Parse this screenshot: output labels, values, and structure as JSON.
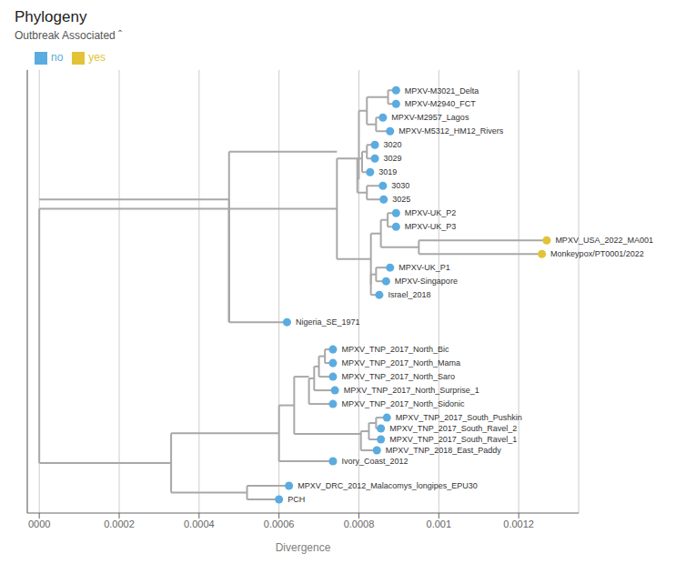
{
  "chart_data": {
    "type": "scatter",
    "title": "Phylogeny",
    "subtitle": "Outbreak Associated ˆ",
    "xlabel": "Divergence",
    "xlim": [
      -3e-05,
      0.00135
    ],
    "xticks": [
      {
        "value": 0,
        "label": "0000"
      },
      0.0002,
      0.0004,
      0.0006,
      0.0008,
      0.001,
      0.0012
    ],
    "ylim": [
      -3.0,
      29.5
    ],
    "tick_labels": "x",
    "grid": true,
    "legend": "upper left",
    "series": [
      {
        "name": "no",
        "color": "#5aace0"
      },
      {
        "name": "yes",
        "color": "#e2c337"
      }
    ],
    "points": [
      {
        "name": "MPXV-M3021_Delta",
        "x": 0.000893,
        "y": 28,
        "group": "no"
      },
      {
        "name": "MPXV-M2940_FCT",
        "x": 0.000893,
        "y": 27,
        "group": "no"
      },
      {
        "name": "MPXV-M2957_Lagos",
        "x": 0.00086,
        "y": 26,
        "group": "no"
      },
      {
        "name": "MPXV-M5312_HM12_Rivers",
        "x": 0.000878,
        "y": 25,
        "group": "no"
      },
      {
        "name": "3020",
        "x": 0.00084,
        "y": 24,
        "group": "no"
      },
      {
        "name": "3029",
        "x": 0.00084,
        "y": 23,
        "group": "no"
      },
      {
        "name": "3019",
        "x": 0.000828,
        "y": 22,
        "group": "no"
      },
      {
        "name": "3030",
        "x": 0.00086,
        "y": 21,
        "group": "no"
      },
      {
        "name": "3025",
        "x": 0.000862,
        "y": 20,
        "group": "no"
      },
      {
        "name": "MPXV-UK_P2",
        "x": 0.000893,
        "y": 19,
        "group": "no"
      },
      {
        "name": "MPXV-UK_P3",
        "x": 0.000893,
        "y": 18,
        "group": "no"
      },
      {
        "name": "MPXV_USA_2022_MA001",
        "x": 0.00127,
        "y": 17,
        "group": "yes"
      },
      {
        "name": "Monkeypox/PT0001/2022",
        "x": 0.001258,
        "y": 16,
        "group": "yes"
      },
      {
        "name": "MPXV-UK_P1",
        "x": 0.000878,
        "y": 15,
        "group": "no"
      },
      {
        "name": "MPXV-Singapore",
        "x": 0.000868,
        "y": 14,
        "group": "no"
      },
      {
        "name": "Israel_2018",
        "x": 0.000851,
        "y": 13,
        "group": "no"
      },
      {
        "name": "Nigeria_SE_1971",
        "x": 0.00062,
        "y": 11,
        "group": "no"
      },
      {
        "name": "MPXV_TNP_2017_North_Bic",
        "x": 0.000735,
        "y": 9,
        "group": "no"
      },
      {
        "name": "MPXV_TNP_2017_North_Mama",
        "x": 0.000735,
        "y": 8,
        "group": "no"
      },
      {
        "name": "MPXV_TNP_2017_North_Saro",
        "x": 0.000735,
        "y": 7,
        "group": "no"
      },
      {
        "name": "MPXV_TNP_2017_North_Surprise_1",
        "x": 0.00074,
        "y": 6,
        "group": "no"
      },
      {
        "name": "MPXV_TNP_2017_North_Sidonic",
        "x": 0.000735,
        "y": 5,
        "group": "no"
      },
      {
        "name": "MPXV_TNP_2017_South_Pushkin",
        "x": 0.00087,
        "y": 4,
        "group": "no"
      },
      {
        "name": "MPXV_TNP_2017_South_Ravel_2",
        "x": 0.000855,
        "y": 3.2,
        "group": "no"
      },
      {
        "name": "MPXV_TNP_2017_South_Ravel_1",
        "x": 0.000855,
        "y": 2.4,
        "group": "no"
      },
      {
        "name": "MPXV_TNP_2018_East_Paddy",
        "x": 0.000845,
        "y": 1.6,
        "group": "no"
      },
      {
        "name": "Ivory_Coast_2012",
        "x": 0.000735,
        "y": 0.8,
        "group": "no"
      },
      {
        "name": "MPXV_DRC_2012_Malacomys_longipes_EPU30",
        "x": 0.000625,
        "y": -1,
        "group": "no"
      },
      {
        "name": "PCH",
        "x": 0.0006,
        "y": -2,
        "group": "no"
      }
    ],
    "branches": {
      "color": "#a8a8a8",
      "segments": [
        [
          0,
          20,
          0.000475,
          20
        ],
        [
          0.000475,
          11,
          0.000475,
          20
        ],
        [
          0.000475,
          11,
          0.00062,
          11
        ],
        [
          0.000475,
          23.5,
          0.000745,
          23.5
        ],
        [
          0.000475,
          11,
          0.000475,
          23.5
        ],
        [
          0.000873,
          28,
          0.000893,
          28
        ],
        [
          0.000873,
          27,
          0.000893,
          27
        ],
        [
          0.000873,
          27,
          0.000873,
          28
        ],
        [
          0.000843,
          26,
          0.00086,
          26
        ],
        [
          0.000843,
          25,
          0.000878,
          25
        ],
        [
          0.000843,
          25,
          0.000843,
          26
        ],
        [
          0.00082,
          27.5,
          0.000873,
          27.5
        ],
        [
          0.00082,
          25.5,
          0.000843,
          25.5
        ],
        [
          0.00082,
          25.5,
          0.00082,
          27.5
        ],
        [
          0.00082,
          24,
          0.00084,
          24
        ],
        [
          0.00082,
          23,
          0.00084,
          23
        ],
        [
          0.00082,
          23,
          0.00082,
          24
        ],
        [
          0.000808,
          23.5,
          0.00082,
          23.5
        ],
        [
          0.000808,
          22,
          0.000828,
          22
        ],
        [
          0.000808,
          22,
          0.000808,
          23.5
        ],
        [
          0.00082,
          21,
          0.00086,
          21
        ],
        [
          0.00082,
          20,
          0.000862,
          20
        ],
        [
          0.00082,
          20,
          0.00082,
          21
        ],
        [
          0.000796,
          23,
          0.000808,
          23
        ],
        [
          0.000796,
          20.5,
          0.00082,
          20.5
        ],
        [
          0.000796,
          20.5,
          0.000796,
          23
        ],
        [
          0.0008,
          26.5,
          0.00082,
          26.5
        ],
        [
          0.0008,
          21.5,
          0.000796,
          21.5
        ],
        [
          0.0008,
          21.5,
          0.0008,
          26.5
        ],
        [
          0.000872,
          19,
          0.000893,
          19
        ],
        [
          0.000872,
          18,
          0.000893,
          18
        ],
        [
          0.000872,
          18,
          0.000872,
          19
        ],
        [
          0.00095,
          17,
          0.00127,
          17
        ],
        [
          0.00095,
          16,
          0.001258,
          16
        ],
        [
          0.00095,
          16,
          0.00095,
          17
        ],
        [
          0.000855,
          18.5,
          0.000872,
          18.5
        ],
        [
          0.000855,
          16.5,
          0.00095,
          16.5
        ],
        [
          0.000855,
          16.5,
          0.000855,
          18.5
        ],
        [
          0.000843,
          15,
          0.000878,
          15
        ],
        [
          0.000843,
          14,
          0.000868,
          14
        ],
        [
          0.000843,
          14,
          0.000843,
          15
        ],
        [
          0.00083,
          14.5,
          0.000843,
          14.5
        ],
        [
          0.00083,
          13,
          0.000851,
          13
        ],
        [
          0.00083,
          13,
          0.00083,
          14.5
        ],
        [
          0.00083,
          17.5,
          0.000855,
          17.5
        ],
        [
          0.00083,
          13.75,
          0.00083,
          13.75
        ],
        [
          0.00083,
          13.75,
          0.00083,
          17.5
        ],
        [
          0.000745,
          23,
          0.0008,
          23
        ],
        [
          0.000745,
          15.625,
          0.00083,
          15.625
        ],
        [
          0.000745,
          15.625,
          0.000745,
          23
        ],
        [
          0.000475,
          19.3125,
          0.000745,
          19.3125
        ],
        [
          0.000475,
          11,
          0.000475,
          19.3125
        ],
        [
          0.000715,
          9,
          0.000735,
          9
        ],
        [
          0.000715,
          8,
          0.000735,
          8
        ],
        [
          0.000715,
          8,
          0.000715,
          9
        ],
        [
          0.0007,
          8.5,
          0.000715,
          8.5
        ],
        [
          0.0007,
          7,
          0.000735,
          7
        ],
        [
          0.0007,
          7,
          0.0007,
          8.5
        ],
        [
          0.000688,
          7.75,
          0.0007,
          7.75
        ],
        [
          0.000688,
          6,
          0.00074,
          6
        ],
        [
          0.000688,
          6,
          0.000688,
          7.75
        ],
        [
          0.000675,
          6.875,
          0.000688,
          6.875
        ],
        [
          0.000675,
          5,
          0.000735,
          5
        ],
        [
          0.000675,
          5,
          0.000675,
          6.875
        ],
        [
          0.000843,
          4,
          0.00087,
          4
        ],
        [
          0.000843,
          3.2,
          0.000855,
          3.2
        ],
        [
          0.000843,
          3.2,
          0.000843,
          4
        ],
        [
          0.000825,
          3.6,
          0.000843,
          3.6
        ],
        [
          0.000825,
          2.4,
          0.000855,
          2.4
        ],
        [
          0.000825,
          2.4,
          0.000825,
          3.6
        ],
        [
          0.000805,
          3,
          0.000825,
          3
        ],
        [
          0.000805,
          1.6,
          0.000845,
          1.6
        ],
        [
          0.000805,
          1.6,
          0.000805,
          3
        ],
        [
          0.000638,
          7,
          0.000675,
          7
        ],
        [
          0.000638,
          2.8,
          0.000805,
          2.8
        ],
        [
          0.000638,
          2.8,
          0.000638,
          7
        ],
        [
          0.0006,
          4.9,
          0.000638,
          4.9
        ],
        [
          0.0006,
          0.8,
          0.000735,
          0.8
        ],
        [
          0.0006,
          0.8,
          0.0006,
          4.9
        ],
        [
          0.00052,
          -1,
          0.000625,
          -1
        ],
        [
          0.00052,
          -2,
          0.0006,
          -2
        ],
        [
          0.00052,
          -2,
          0.00052,
          -1
        ],
        [
          0.00033,
          2.85,
          0.0006,
          2.85
        ],
        [
          0.00033,
          -1.5,
          0.00052,
          -1.5
        ],
        [
          0.00033,
          -1.5,
          0.00033,
          2.85
        ],
        [
          0,
          19.3125,
          0.000475,
          19.3125
        ],
        [
          0,
          0.675,
          0.00033,
          0.675
        ],
        [
          0,
          0.675,
          0,
          19.3125
        ]
      ]
    }
  }
}
